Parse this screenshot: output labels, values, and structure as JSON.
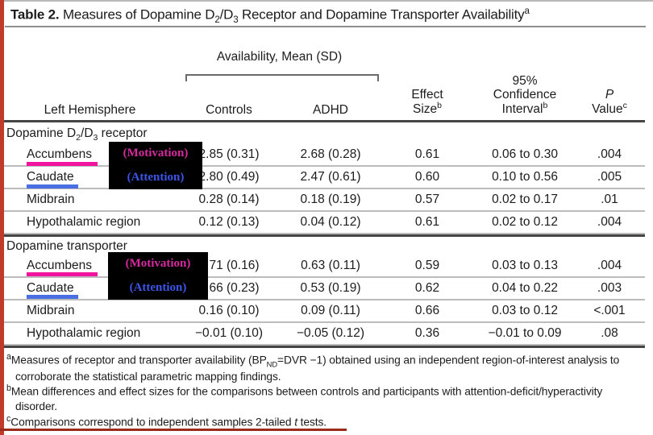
{
  "title": {
    "label": "Table 2.",
    "p1": " Measures of Dopamine D",
    "sub1": "2",
    "p2": "/D",
    "sub2": "3",
    "p3": " Receptor and Dopamine Transporter Availability",
    "sup": "a"
  },
  "header": {
    "left_hemisphere": "Left Hemisphere",
    "availability_group": "Availability, Mean (SD)",
    "controls": "Controls",
    "adhd": "ADHD",
    "effect_size": {
      "line1": "Effect",
      "line2": "Size",
      "sup": "b"
    },
    "confidence_interval": {
      "line1": "95%",
      "line2": "Confidence",
      "line3": "Interval",
      "sup": "b"
    },
    "p_value": {
      "line1": "P",
      "line2": "Value",
      "sup": "c"
    }
  },
  "sections": [
    {
      "name": {
        "p1": "Dopamine D",
        "sub1": "2",
        "p2": "/D",
        "sub2": "3",
        "p3": " receptor"
      },
      "rows": [
        {
          "region": "Accumbens",
          "controls": "2.85 (0.31)",
          "adhd": "2.68 (0.28)",
          "effect": "0.61",
          "ci": "0.06 to 0.30",
          "p": ".004"
        },
        {
          "region": "Caudate",
          "controls": "2.80 (0.49)",
          "adhd": "2.47 (0.61)",
          "effect": "0.60",
          "ci": "0.10 to 0.56",
          "p": ".005"
        },
        {
          "region": "Midbrain",
          "controls": "0.28 (0.14)",
          "adhd": "0.18 (0.19)",
          "effect": "0.57",
          "ci": "0.02 to 0.17",
          "p": ".01"
        },
        {
          "region": "Hypothalamic region",
          "controls": "0.12 (0.13)",
          "adhd": "0.04 (0.12)",
          "effect": "0.61",
          "ci": "0.02 to 0.12",
          "p": ".004"
        }
      ]
    },
    {
      "name": {
        "p1": "Dopamine transporter",
        "sub1": "",
        "p2": "",
        "sub2": "",
        "p3": ""
      },
      "rows": [
        {
          "region": "Accumbens",
          "controls": "0.71 (0.16)",
          "adhd": "0.63 (0.11)",
          "effect": "0.59",
          "ci": "0.03 to 0.13",
          "p": ".004"
        },
        {
          "region": "Caudate",
          "controls": "0.66 (0.23)",
          "adhd": "0.53 (0.19)",
          "effect": "0.62",
          "ci": "0.04 to 0.22",
          "p": ".003"
        },
        {
          "region": "Midbrain",
          "controls": "0.16 (0.10)",
          "adhd": "0.09 (0.11)",
          "effect": "0.66",
          "ci": "0.03 to 0.12",
          "p": "<.001"
        },
        {
          "region": "Hypothalamic region",
          "controls": "−0.01 (0.10)",
          "adhd": "−0.05 (0.12)",
          "effect": "0.36",
          "ci": "−0.01 to 0.09",
          "p": ".08"
        }
      ]
    }
  ],
  "annotations": {
    "motivation_label": "(Motivation)",
    "attention_label": "(Attention)",
    "motivation_color": "#d62a9e",
    "attention_color": "#3c55e8",
    "overlay_bg": "#000000",
    "accumbens_underline_color": "#f0149e",
    "caudate_underline_color": "#4a6fe3"
  },
  "footnotes": {
    "a": {
      "sup": "a",
      "p1": "Measures of receptor and transporter availability (BP",
      "sub": "ND",
      "p2": "=DVR −1) obtained using an independent region-of-interest analysis to corroborate the statistical parametric mapping findings."
    },
    "b": {
      "sup": "b",
      "text": "Mean differences and effect sizes for the comparisons between controls and participants with attention-deficit/hyperactivity disorder."
    },
    "c": {
      "sup": "c",
      "p1": "Comparisons correspond to independent samples 2-tailed ",
      "italic": "t",
      "p2": " tests."
    }
  },
  "colors": {
    "accent_red": "#c13b2a",
    "bottom_line_red": "#992a1c",
    "rule_dark": "#454545",
    "rule_light": "#bcbcbc"
  }
}
